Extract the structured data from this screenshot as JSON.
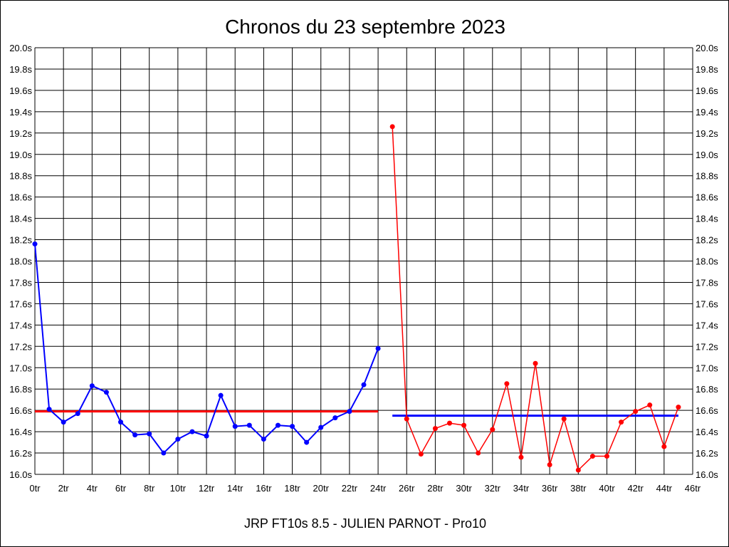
{
  "chart_data": {
    "type": "line",
    "title": "Chronos du 23 septembre 2023",
    "subtitle": "JRP FT10s 8.5 - JULIEN PARNOT - Pro10",
    "xlim": [
      0,
      46
    ],
    "ylim": [
      16.0,
      20.0
    ],
    "grid": true,
    "x_ticks": [
      "0tr",
      "2tr",
      "4tr",
      "6tr",
      "8tr",
      "10tr",
      "12tr",
      "14tr",
      "16tr",
      "18tr",
      "20tr",
      "22tr",
      "24tr",
      "26tr",
      "28tr",
      "30tr",
      "32tr",
      "34tr",
      "36tr",
      "38tr",
      "40tr",
      "42tr",
      "44tr",
      "46tr"
    ],
    "y_ticks": [
      "16.0s",
      "16.2s",
      "16.4s",
      "16.6s",
      "16.8s",
      "17.0s",
      "17.2s",
      "17.4s",
      "17.6s",
      "17.8s",
      "18.0s",
      "18.2s",
      "18.4s",
      "18.6s",
      "18.8s",
      "19.0s",
      "19.2s",
      "19.4s",
      "19.6s",
      "19.8s",
      "20.0s"
    ],
    "series": [
      {
        "color": "#0000ff",
        "x": [
          0,
          1,
          2,
          3,
          4,
          5,
          6,
          7,
          8,
          9,
          10,
          11,
          12,
          13,
          14,
          15,
          16,
          17,
          18,
          19,
          20,
          21,
          22,
          23,
          24
        ],
        "values": [
          18.16,
          16.61,
          16.49,
          16.57,
          16.83,
          16.77,
          16.49,
          16.37,
          16.38,
          16.2,
          16.33,
          16.4,
          16.36,
          16.74,
          16.45,
          16.46,
          16.33,
          16.46,
          16.45,
          16.3,
          16.44,
          16.53,
          16.59,
          16.84,
          17.18
        ]
      },
      {
        "color": "#ff0000",
        "x": [
          25,
          26,
          27,
          28,
          29,
          30,
          31,
          32,
          33,
          34,
          35,
          36,
          37,
          38,
          39,
          40,
          41,
          42,
          43,
          44,
          45
        ],
        "values": [
          19.26,
          16.52,
          16.19,
          16.43,
          16.48,
          16.46,
          16.2,
          16.42,
          16.85,
          16.16,
          17.04,
          16.09,
          16.52,
          16.04,
          16.17,
          16.17,
          16.49,
          16.59,
          16.65,
          16.26,
          16.63
        ]
      }
    ],
    "average_lines": [
      {
        "color": "#ff0000",
        "x": [
          0,
          24
        ],
        "value": 16.59
      },
      {
        "color": "#0000ff",
        "x": [
          25,
          45
        ],
        "value": 16.55
      }
    ]
  }
}
